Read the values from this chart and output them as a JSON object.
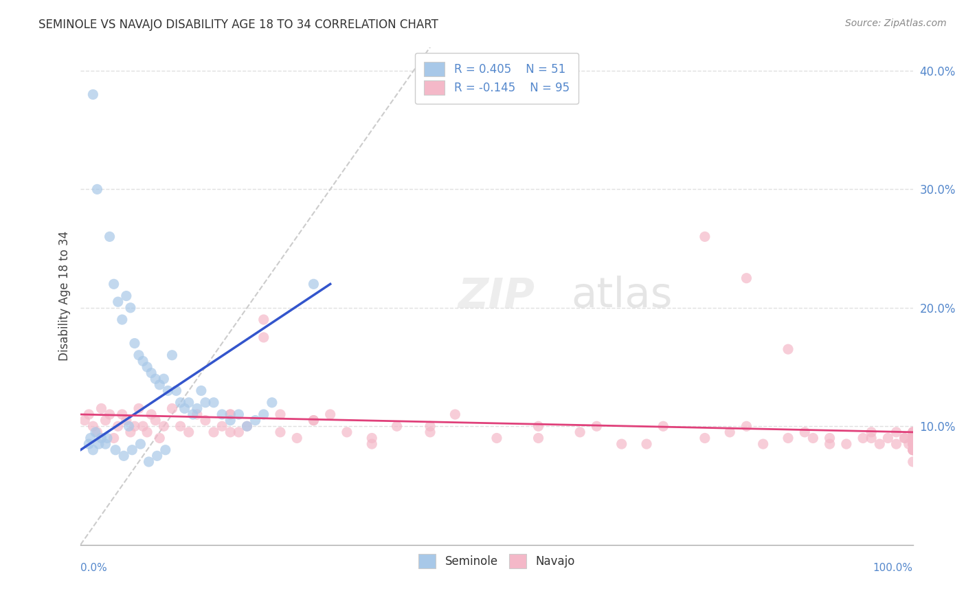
{
  "title": "SEMINOLE VS NAVAJO DISABILITY AGE 18 TO 34 CORRELATION CHART",
  "source": "Source: ZipAtlas.com",
  "ylabel": "Disability Age 18 to 34",
  "xlim": [
    0.0,
    100.0
  ],
  "ylim": [
    0.0,
    42.0
  ],
  "ytick_values": [
    10,
    20,
    30,
    40
  ],
  "ytick_labels": [
    "10.0%",
    "20.0%",
    "30.0%",
    "40.0%"
  ],
  "seminole_color": "#a8c8e8",
  "navajo_color": "#f4b8c8",
  "seminole_line_color": "#3355cc",
  "navajo_line_color": "#e0407a",
  "diag_line_color": "#cccccc",
  "background_color": "#ffffff",
  "grid_color": "#e0e0e0",
  "label_color": "#5588cc",
  "seminole_x": [
    1.5,
    2.0,
    3.5,
    4.0,
    4.5,
    5.0,
    5.5,
    6.0,
    6.5,
    7.0,
    7.5,
    8.0,
    8.5,
    9.0,
    9.5,
    10.0,
    10.5,
    11.0,
    11.5,
    12.0,
    12.5,
    13.0,
    13.5,
    14.0,
    14.5,
    15.0,
    16.0,
    17.0,
    18.0,
    19.0,
    20.0,
    21.0,
    22.0,
    23.0,
    1.0,
    1.2,
    1.5,
    1.8,
    2.2,
    2.5,
    3.0,
    3.2,
    4.2,
    5.2,
    6.2,
    7.2,
    8.2,
    9.2,
    10.2,
    28.0,
    5.8
  ],
  "seminole_y": [
    38.0,
    30.0,
    26.0,
    22.0,
    20.5,
    19.0,
    21.0,
    20.0,
    17.0,
    16.0,
    15.5,
    15.0,
    14.5,
    14.0,
    13.5,
    14.0,
    13.0,
    16.0,
    13.0,
    12.0,
    11.5,
    12.0,
    11.0,
    11.5,
    13.0,
    12.0,
    12.0,
    11.0,
    10.5,
    11.0,
    10.0,
    10.5,
    11.0,
    12.0,
    8.5,
    9.0,
    8.0,
    9.5,
    8.5,
    9.0,
    8.5,
    9.0,
    8.0,
    7.5,
    8.0,
    8.5,
    7.0,
    7.5,
    8.0,
    22.0,
    10.0
  ],
  "navajo_x": [
    0.5,
    1.0,
    1.5,
    2.0,
    2.5,
    3.0,
    3.5,
    4.0,
    4.5,
    5.0,
    5.5,
    6.0,
    6.5,
    7.0,
    7.5,
    8.0,
    8.5,
    9.0,
    9.5,
    10.0,
    11.0,
    12.0,
    13.0,
    14.0,
    15.0,
    16.0,
    17.0,
    18.0,
    19.0,
    20.0,
    22.0,
    24.0,
    26.0,
    28.0,
    30.0,
    32.0,
    35.0,
    38.0,
    42.0,
    45.0,
    50.0,
    55.0,
    60.0,
    65.0,
    70.0,
    75.0,
    78.0,
    80.0,
    82.0,
    85.0,
    87.0,
    90.0,
    92.0,
    94.0,
    95.0,
    96.0,
    97.0,
    98.0,
    99.0,
    99.5,
    22.0,
    28.0,
    18.0,
    35.0,
    42.0,
    18.0,
    24.0,
    55.0,
    62.0,
    68.0,
    75.0,
    80.0,
    85.0,
    88.0,
    90.0,
    95.0,
    98.0,
    99.0,
    100.0,
    100.0,
    100.0,
    100.0,
    100.0,
    100.0,
    100.0,
    100.0,
    100.0,
    100.0,
    100.0,
    100.0,
    100.0,
    100.0,
    100.0,
    100.0,
    100.0
  ],
  "navajo_y": [
    10.5,
    11.0,
    10.0,
    9.5,
    11.5,
    10.5,
    11.0,
    9.0,
    10.0,
    11.0,
    10.5,
    9.5,
    10.0,
    11.5,
    10.0,
    9.5,
    11.0,
    10.5,
    9.0,
    10.0,
    11.5,
    10.0,
    9.5,
    11.0,
    10.5,
    9.5,
    10.0,
    11.0,
    9.5,
    10.0,
    17.5,
    11.0,
    9.0,
    10.5,
    11.0,
    9.5,
    8.5,
    10.0,
    9.5,
    11.0,
    9.0,
    10.0,
    9.5,
    8.5,
    10.0,
    9.0,
    9.5,
    10.0,
    8.5,
    9.0,
    9.5,
    9.0,
    8.5,
    9.0,
    9.5,
    8.5,
    9.0,
    9.5,
    9.0,
    8.5,
    19.0,
    10.5,
    9.5,
    9.0,
    10.0,
    11.0,
    9.5,
    9.0,
    10.0,
    8.5,
    26.0,
    22.5,
    16.5,
    9.0,
    8.5,
    9.0,
    8.5,
    9.0,
    9.5,
    9.0,
    8.5,
    8.0,
    9.0,
    9.5,
    8.5,
    8.0,
    9.0,
    9.5,
    8.0,
    8.5,
    9.0,
    9.0,
    8.5,
    8.0,
    7.0
  ],
  "diag_line_x": [
    0,
    42
  ],
  "diag_line_y": [
    0,
    42
  ],
  "sem_trend_x": [
    0,
    30
  ],
  "sem_trend_y": [
    8.0,
    22.0
  ],
  "nav_trend_x": [
    0,
    100
  ],
  "nav_trend_y": [
    11.0,
    9.5
  ]
}
